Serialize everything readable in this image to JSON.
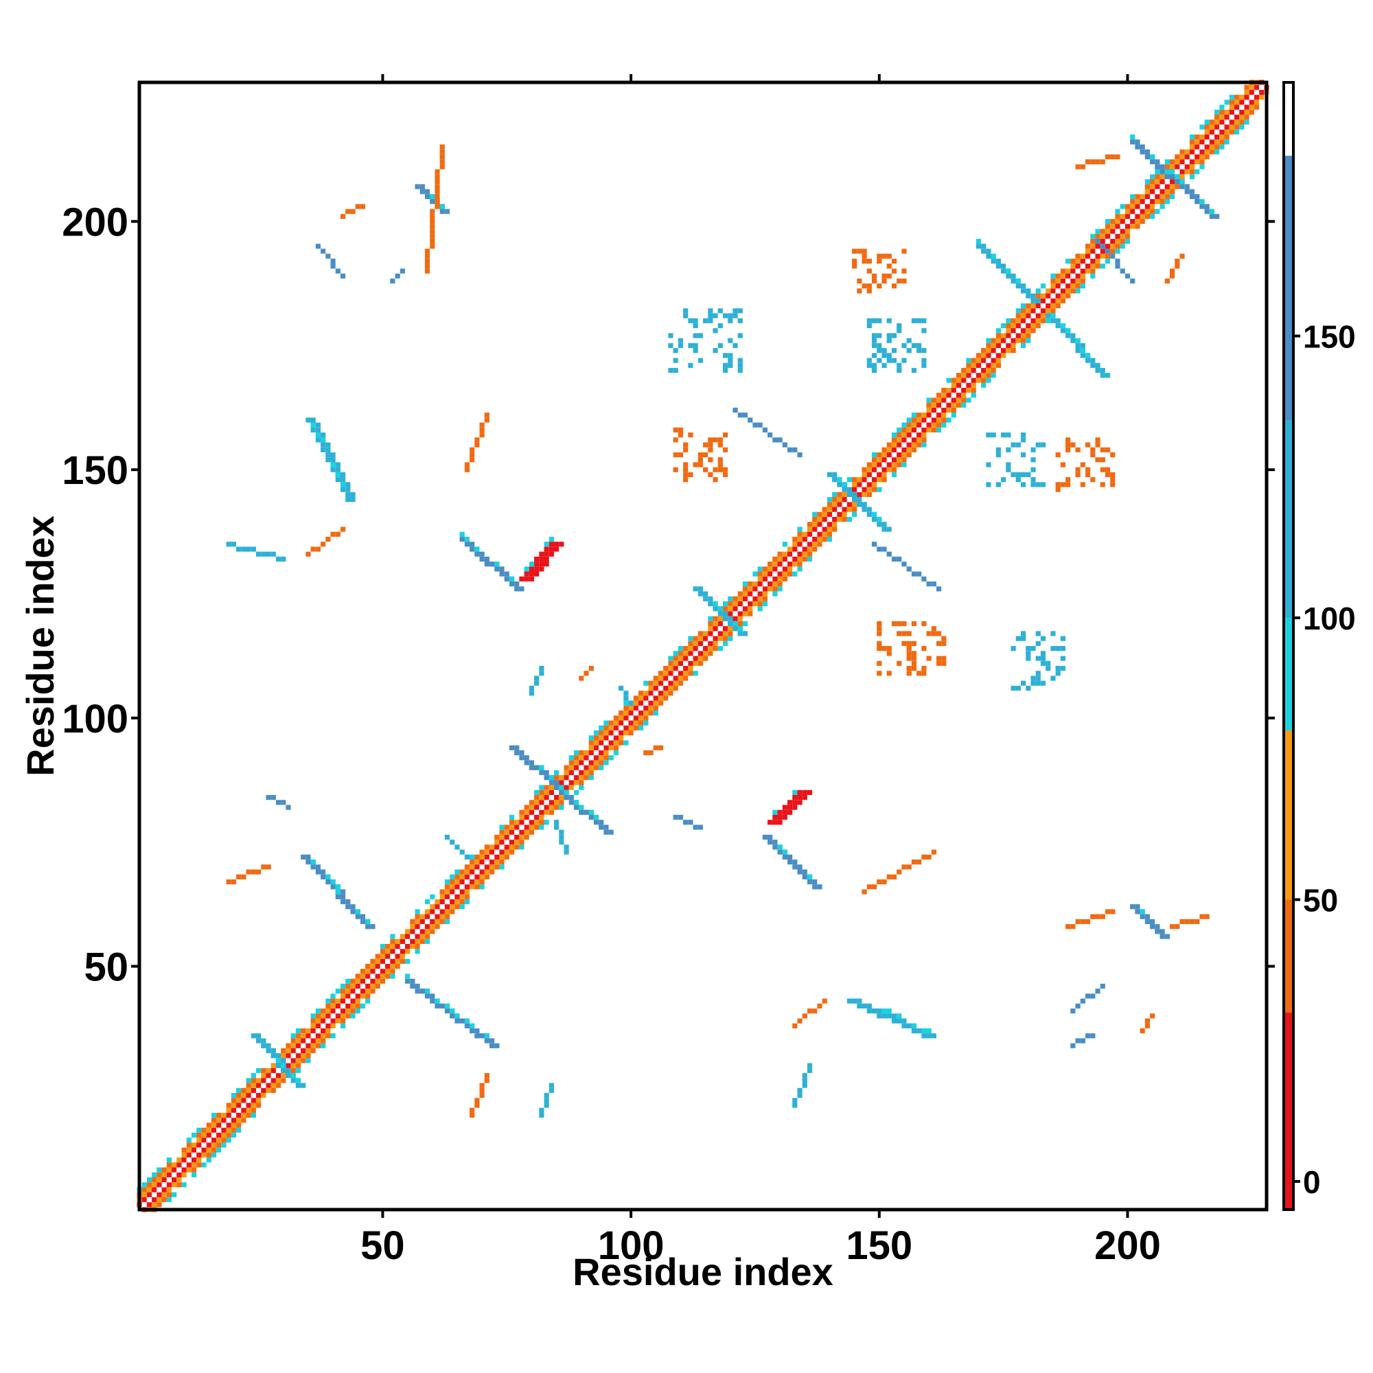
{
  "chart_data": {
    "type": "heatmap",
    "title": "",
    "xlabel": "Residue index",
    "ylabel": "Residue index",
    "xlim": [
      1,
      228
    ],
    "ylim": [
      1,
      228
    ],
    "xticks": [
      50,
      100,
      150,
      200
    ],
    "yticks": [
      50,
      100,
      150,
      200
    ],
    "colorbar": {
      "ticks": [
        0,
        50,
        100,
        150
      ],
      "range": [
        -5,
        195
      ],
      "bands": [
        {
          "from": -5,
          "to": 30,
          "color": "#e8141b"
        },
        {
          "from": 30,
          "to": 50,
          "color": "#f06a12"
        },
        {
          "from": 50,
          "to": 80,
          "color": "#f59a12"
        },
        {
          "from": 80,
          "to": 100,
          "color": "#1ad2e0"
        },
        {
          "from": 100,
          "to": 135,
          "color": "#2eb0d6"
        },
        {
          "from": 135,
          "to": 182,
          "color": "#4a8dc4"
        },
        {
          "from": 182,
          "to": 195,
          "color": "#ffffff"
        }
      ]
    },
    "diagonal_band": {
      "from": 1,
      "to": 228
    },
    "features": [
      {
        "kind": "line",
        "from": [
          34,
          72
        ],
        "to": [
          47,
          58
        ],
        "color": "#4a8dc4",
        "width": 2
      },
      {
        "kind": "line",
        "from": [
          55,
          47
        ],
        "to": [
          72,
          34
        ],
        "color": "#4a8dc4",
        "width": 2
      },
      {
        "kind": "line",
        "from": [
          76,
          94
        ],
        "to": [
          95,
          77
        ],
        "color": "#4a8dc4",
        "width": 2
      },
      {
        "kind": "line",
        "from": [
          66,
          136
        ],
        "to": [
          77,
          126
        ],
        "color": "#4a8dc4",
        "width": 2
      },
      {
        "kind": "line",
        "from": [
          78,
          128
        ],
        "to": [
          84,
          135
        ],
        "color": "#e8141b",
        "width": 3
      },
      {
        "kind": "line",
        "from": [
          127,
          76
        ],
        "to": [
          137,
          66
        ],
        "color": "#4a8dc4",
        "width": 2
      },
      {
        "kind": "line",
        "from": [
          128,
          79
        ],
        "to": [
          134,
          85
        ],
        "color": "#e8141b",
        "width": 3
      },
      {
        "kind": "line",
        "from": [
          57,
          207
        ],
        "to": [
          62,
          202
        ],
        "color": "#4a8dc4",
        "width": 2
      },
      {
        "kind": "line",
        "from": [
          201,
          62
        ],
        "to": [
          207,
          56
        ],
        "color": "#4a8dc4",
        "width": 2
      },
      {
        "kind": "line",
        "from": [
          201,
          216
        ],
        "to": [
          217,
          201
        ],
        "color": "#4a8dc4",
        "width": 2
      },
      {
        "kind": "line",
        "from": [
          35,
          160
        ],
        "to": [
          43,
          144
        ],
        "color": "#2eb0d6",
        "width": 2
      },
      {
        "kind": "line",
        "from": [
          144,
          43
        ],
        "to": [
          160,
          36
        ],
        "color": "#2eb0d6",
        "width": 2
      },
      {
        "kind": "line",
        "from": [
          24,
          36
        ],
        "to": [
          33,
          26
        ],
        "color": "#2eb0d6",
        "width": 2
      },
      {
        "kind": "line",
        "from": [
          170,
          195
        ],
        "to": [
          181,
          184
        ],
        "color": "#2eb0d6",
        "width": 2
      },
      {
        "kind": "line",
        "from": [
          184,
          181
        ],
        "to": [
          195,
          169
        ],
        "color": "#2eb0d6",
        "width": 2
      },
      {
        "kind": "line",
        "from": [
          140,
          149
        ],
        "to": [
          151,
          138
        ],
        "color": "#2eb0d6",
        "width": 2
      },
      {
        "kind": "line",
        "from": [
          113,
          126
        ],
        "to": [
          122,
          117
        ],
        "color": "#2eb0d6",
        "width": 2
      },
      {
        "kind": "line",
        "from": [
          67,
          150
        ],
        "to": [
          71,
          161
        ],
        "color": "#f06a12",
        "width": 1
      },
      {
        "kind": "line",
        "from": [
          59,
          190
        ],
        "to": [
          62,
          215
        ],
        "color": "#f06a12",
        "width": 1
      },
      {
        "kind": "line",
        "from": [
          35,
          133
        ],
        "to": [
          42,
          138
        ],
        "color": "#f06a12",
        "width": 1
      },
      {
        "kind": "line",
        "from": [
          68,
          20
        ],
        "to": [
          71,
          28
        ],
        "color": "#f06a12",
        "width": 1
      },
      {
        "kind": "line",
        "from": [
          133,
          38
        ],
        "to": [
          139,
          43
        ],
        "color": "#f06a12",
        "width": 1
      },
      {
        "kind": "line",
        "from": [
          147,
          65
        ],
        "to": [
          161,
          73
        ],
        "color": "#f06a12",
        "width": 1
      },
      {
        "kind": "line",
        "from": [
          188,
          58
        ],
        "to": [
          197,
          61
        ],
        "color": "#f06a12",
        "width": 1
      },
      {
        "kind": "line",
        "from": [
          209,
          58
        ],
        "to": [
          216,
          60
        ],
        "color": "#f06a12",
        "width": 1
      },
      {
        "kind": "line",
        "from": [
          19,
          67
        ],
        "to": [
          27,
          70
        ],
        "color": "#f06a12",
        "width": 1
      },
      {
        "kind": "line",
        "from": [
          85,
          79
        ],
        "to": [
          87,
          73
        ],
        "color": "#2eb0d6",
        "width": 1
      },
      {
        "kind": "line",
        "from": [
          133,
          22
        ],
        "to": [
          136,
          30
        ],
        "color": "#2eb0d6",
        "width": 1
      },
      {
        "kind": "line",
        "from": [
          27,
          84
        ],
        "to": [
          31,
          82
        ],
        "color": "#4a8dc4",
        "width": 1
      },
      {
        "kind": "line",
        "from": [
          19,
          135
        ],
        "to": [
          30,
          132
        ],
        "color": "#2eb0d6",
        "width": 1
      },
      {
        "kind": "line",
        "from": [
          109,
          80
        ],
        "to": [
          114,
          78
        ],
        "color": "#4a8dc4",
        "width": 1
      },
      {
        "kind": "line",
        "from": [
          149,
          135
        ],
        "to": [
          162,
          126
        ],
        "color": "#4a8dc4",
        "width": 1
      },
      {
        "kind": "line",
        "from": [
          121,
          162
        ],
        "to": [
          134,
          153
        ],
        "color": "#4a8dc4",
        "width": 1
      },
      {
        "kind": "line",
        "from": [
          194,
          196
        ],
        "to": [
          201,
          188
        ],
        "color": "#4a8dc4",
        "width": 1
      },
      {
        "kind": "line",
        "from": [
          37,
          195
        ],
        "to": [
          42,
          189
        ],
        "color": "#4a8dc4",
        "width": 1
      },
      {
        "kind": "line",
        "from": [
          189,
          41
        ],
        "to": [
          195,
          46
        ],
        "color": "#4a8dc4",
        "width": 1
      },
      {
        "kind": "line",
        "from": [
          52,
          188
        ],
        "to": [
          54,
          190
        ],
        "color": "#4a8dc4",
        "width": 1
      },
      {
        "kind": "line",
        "from": [
          190,
          211
        ],
        "to": [
          198,
          213
        ],
        "color": "#f06a12",
        "width": 1
      },
      {
        "kind": "line",
        "from": [
          208,
          188
        ],
        "to": [
          211,
          193
        ],
        "color": "#f06a12",
        "width": 1
      },
      {
        "kind": "line",
        "from": [
          42,
          201
        ],
        "to": [
          46,
          203
        ],
        "color": "#f06a12",
        "width": 1
      },
      {
        "kind": "line",
        "from": [
          103,
          93
        ],
        "to": [
          106,
          94
        ],
        "color": "#f06a12",
        "width": 1
      },
      {
        "kind": "line",
        "from": [
          90,
          108
        ],
        "to": [
          92,
          110
        ],
        "color": "#f06a12",
        "width": 1
      },
      {
        "kind": "line",
        "from": [
          80,
          105
        ],
        "to": [
          82,
          110
        ],
        "color": "#2eb0d6",
        "width": 1
      },
      {
        "kind": "line",
        "from": [
          98,
          106
        ],
        "to": [
          100,
          103
        ],
        "color": "#2eb0d6",
        "width": 1
      },
      {
        "kind": "line",
        "from": [
          203,
          37
        ],
        "to": [
          205,
          40
        ],
        "color": "#f06a12",
        "width": 1
      },
      {
        "kind": "line",
        "from": [
          63,
          76
        ],
        "to": [
          67,
          72
        ],
        "color": "#2eb0d6",
        "width": 1
      },
      {
        "kind": "line",
        "from": [
          82,
          20
        ],
        "to": [
          84,
          26
        ],
        "color": "#2eb0d6",
        "width": 1
      },
      {
        "kind": "line",
        "from": [
          189,
          34
        ],
        "to": [
          193,
          36
        ],
        "color": "#4a8dc4",
        "width": 1
      }
    ],
    "patches": [
      {
        "x": [
          145,
          155
        ],
        "y": [
          186,
          194
        ],
        "color": "#f06a12"
      },
      {
        "x": [
          148,
          159
        ],
        "y": [
          170,
          180
        ],
        "color": "#2eb0d6"
      },
      {
        "x": [
          108,
          122
        ],
        "y": [
          170,
          182
        ],
        "color": "#2eb0d6"
      },
      {
        "x": [
          109,
          119
        ],
        "y": [
          148,
          158
        ],
        "color": "#f06a12"
      },
      {
        "x": [
          172,
          183
        ],
        "y": [
          147,
          157
        ],
        "color": "#2eb0d6"
      },
      {
        "x": [
          186,
          197
        ],
        "y": [
          146,
          156
        ],
        "color": "#f06a12"
      },
      {
        "x": [
          150,
          163
        ],
        "y": [
          109,
          119
        ],
        "color": "#f06a12"
      },
      {
        "x": [
          177,
          187
        ],
        "y": [
          106,
          117
        ],
        "color": "#2eb0d6"
      }
    ]
  }
}
